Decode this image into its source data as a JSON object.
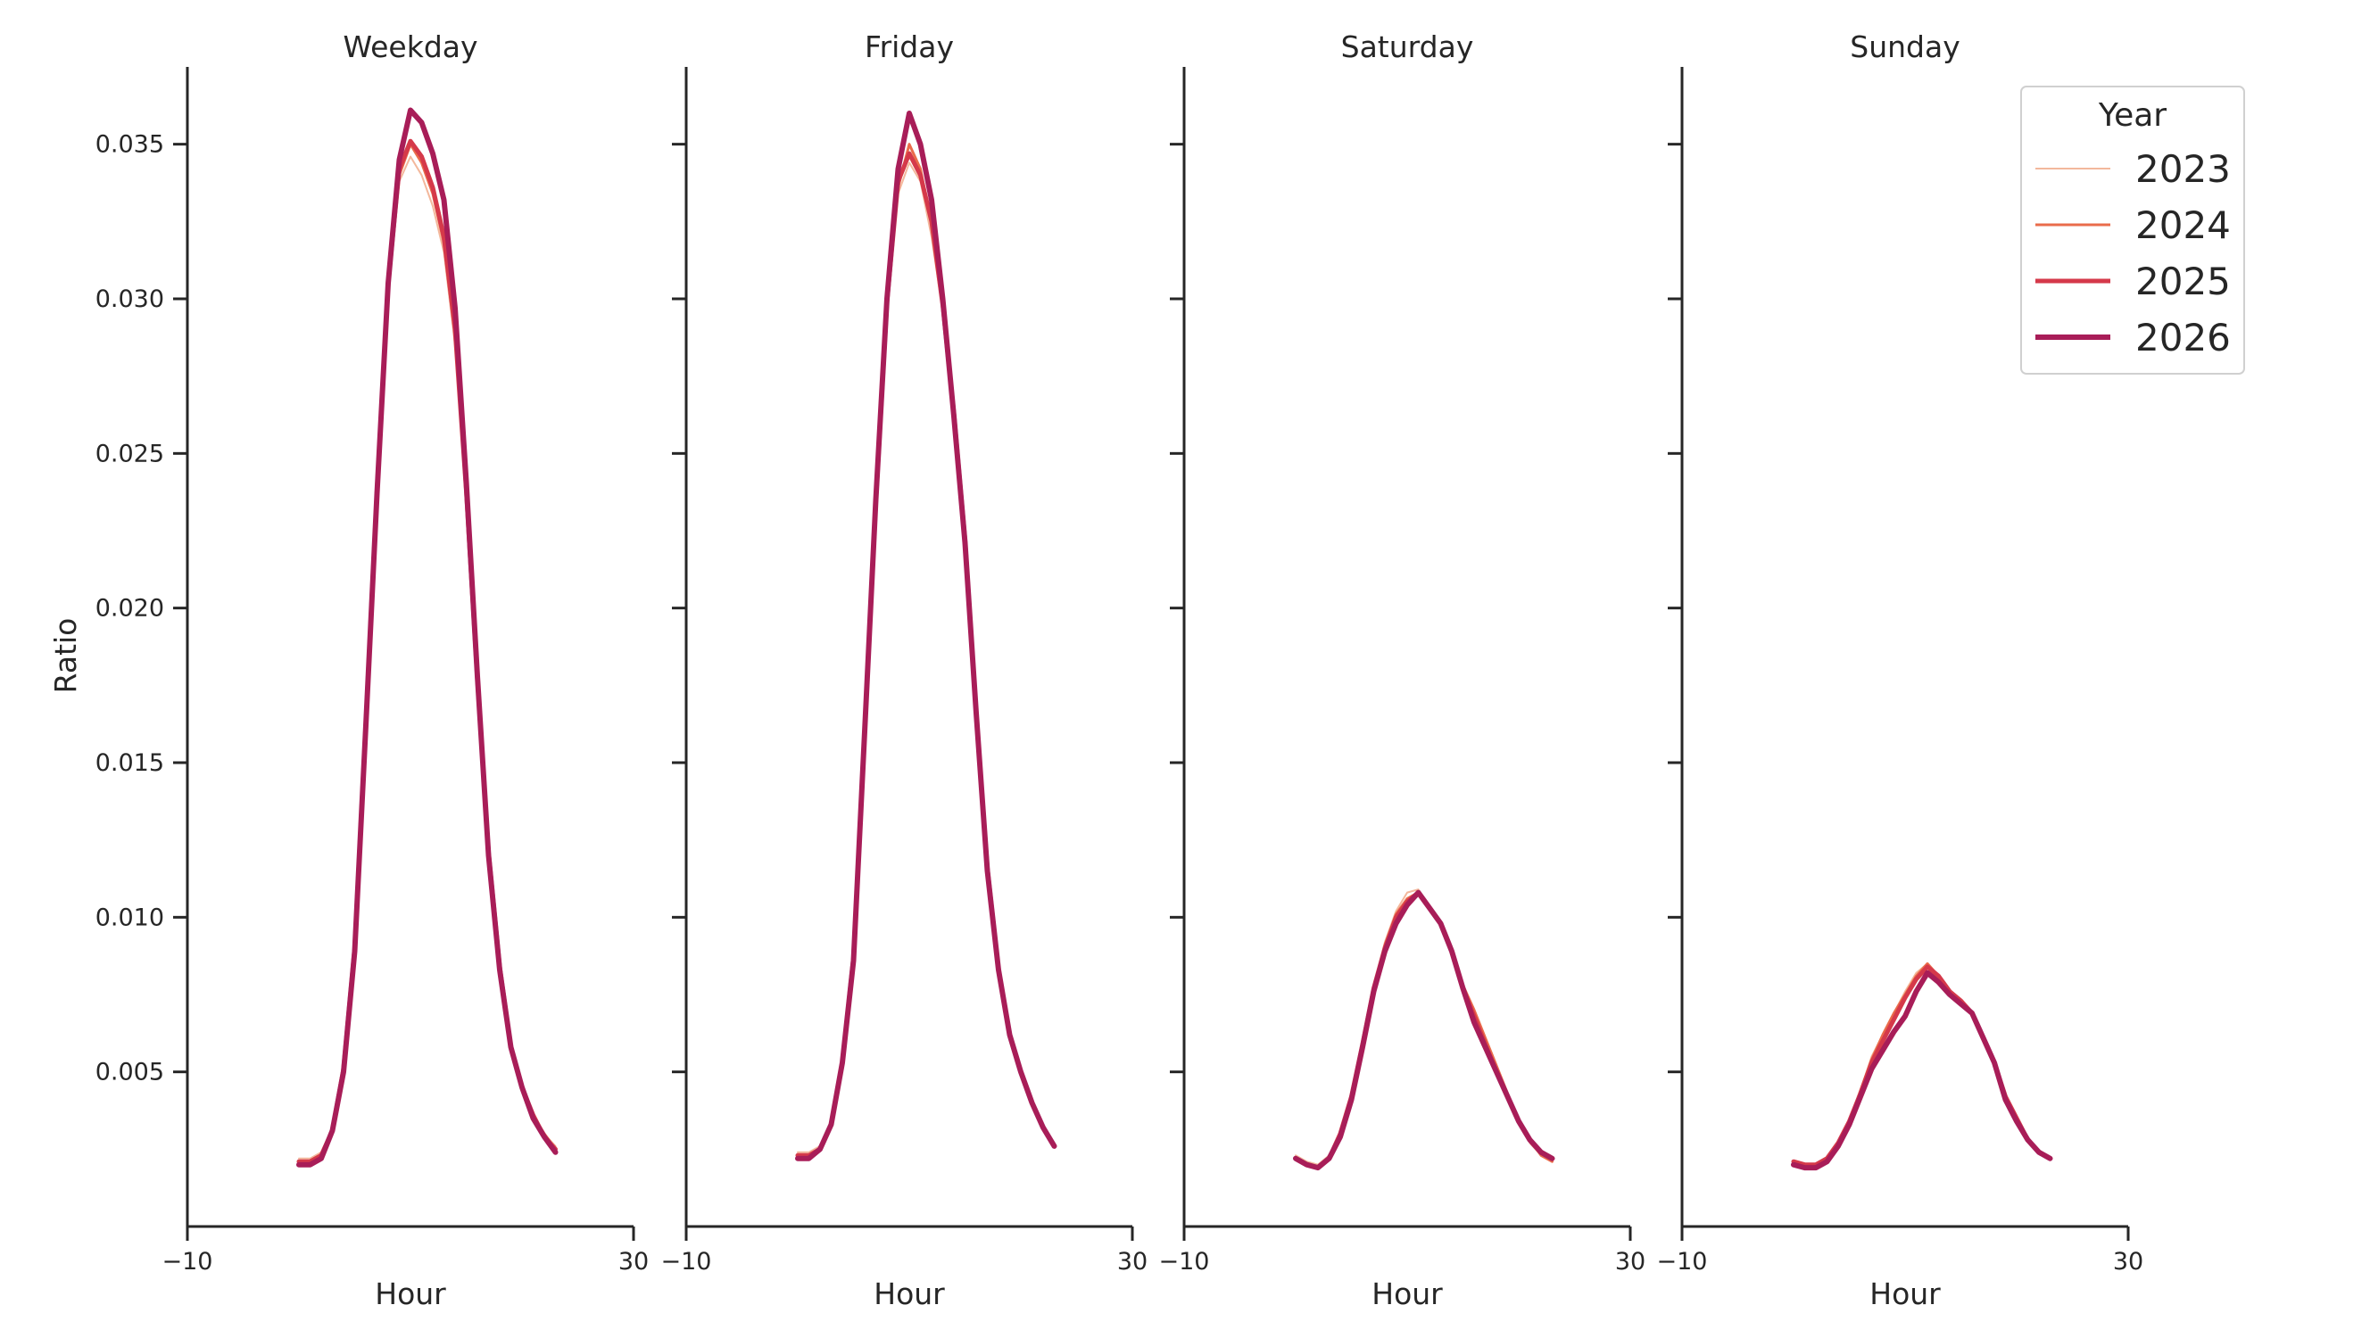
{
  "chart_data": {
    "type": "line",
    "ylabel": "Ratio",
    "ylim": [
      0,
      0.0375
    ],
    "yticks": [
      0.005,
      0.01,
      0.015,
      0.02,
      0.025,
      0.03,
      0.035
    ],
    "ytick_labels": [
      "0.005",
      "0.010",
      "0.015",
      "0.020",
      "0.025",
      "0.030",
      "0.035"
    ],
    "xlim": [
      -10,
      30
    ],
    "xticks": [
      -10,
      30
    ],
    "xtick_labels": [
      "−10",
      "30"
    ],
    "legend": {
      "title": "Year",
      "placement": "top-right"
    },
    "x": [
      0,
      1,
      2,
      3,
      4,
      5,
      6,
      7,
      8,
      9,
      10,
      11,
      12,
      13,
      14,
      15,
      16,
      17,
      18,
      19,
      20,
      21,
      22,
      23
    ],
    "panels": [
      {
        "title": "Weekday",
        "xlabel": "Hour",
        "series": [
          {
            "name": "2023",
            "color": "#f3b89c",
            "width": 2,
            "values": [
              0.0022,
              0.0022,
              0.0024,
              0.0032,
              0.0052,
              0.0092,
              0.0165,
              0.024,
              0.0305,
              0.0338,
              0.0346,
              0.034,
              0.033,
              0.0315,
              0.0285,
              0.0235,
              0.0175,
              0.012,
              0.0083,
              0.0058,
              0.0045,
              0.0036,
              0.003,
              0.0026
            ]
          },
          {
            "name": "2024",
            "color": "#ea6c4b",
            "width": 3,
            "values": [
              0.0021,
              0.0021,
              0.0023,
              0.0031,
              0.0051,
              0.009,
              0.0163,
              0.0238,
              0.0304,
              0.034,
              0.035,
              0.0344,
              0.0334,
              0.0318,
              0.0288,
              0.0237,
              0.0176,
              0.0121,
              0.0084,
              0.0058,
              0.0045,
              0.0036,
              0.003,
              0.0025
            ]
          },
          {
            "name": "2025",
            "color": "#d5394a",
            "width": 5,
            "values": [
              0.0021,
              0.0021,
              0.0023,
              0.0031,
              0.0051,
              0.009,
              0.0163,
              0.0238,
              0.0305,
              0.0342,
              0.0351,
              0.0346,
              0.0336,
              0.032,
              0.029,
              0.0238,
              0.0177,
              0.0121,
              0.0084,
              0.0058,
              0.0045,
              0.0036,
              0.0029,
              0.0025
            ]
          },
          {
            "name": "2026",
            "color": "#a81d58",
            "width": 6,
            "values": [
              0.002,
              0.002,
              0.0022,
              0.0031,
              0.005,
              0.0089,
              0.0162,
              0.0237,
              0.0305,
              0.0345,
              0.0361,
              0.0357,
              0.0347,
              0.0332,
              0.0297,
              0.0241,
              0.0178,
              0.012,
              0.0083,
              0.0058,
              0.0045,
              0.0035,
              0.0029,
              0.0024
            ]
          }
        ]
      },
      {
        "title": "Friday",
        "xlabel": "Hour",
        "series": [
          {
            "name": "2023",
            "color": "#f3b89c",
            "width": 2,
            "values": [
              0.0024,
              0.0024,
              0.0026,
              0.0034,
              0.0054,
              0.0088,
              0.016,
              0.0232,
              0.0298,
              0.0334,
              0.0344,
              0.0338,
              0.032,
              0.0296,
              0.0262,
              0.0222,
              0.0166,
              0.0116,
              0.0083,
              0.0062,
              0.005,
              0.004,
              0.0032,
              0.0027
            ]
          },
          {
            "name": "2024",
            "color": "#ea6c4b",
            "width": 3,
            "values": [
              0.0023,
              0.0023,
              0.0025,
              0.0033,
              0.0053,
              0.0087,
              0.016,
              0.0233,
              0.0298,
              0.0336,
              0.035,
              0.0342,
              0.0324,
              0.0298,
              0.0263,
              0.0222,
              0.0166,
              0.0116,
              0.0083,
              0.0062,
              0.005,
              0.004,
              0.0032,
              0.0026
            ]
          },
          {
            "name": "2025",
            "color": "#d5394a",
            "width": 5,
            "values": [
              0.0023,
              0.0023,
              0.0025,
              0.0033,
              0.0053,
              0.0087,
              0.016,
              0.0234,
              0.0299,
              0.0338,
              0.0347,
              0.034,
              0.0325,
              0.0298,
              0.0263,
              0.0222,
              0.0166,
              0.0116,
              0.0083,
              0.0062,
              0.005,
              0.004,
              0.0032,
              0.0026
            ]
          },
          {
            "name": "2026",
            "color": "#a81d58",
            "width": 6,
            "values": [
              0.0022,
              0.0022,
              0.0025,
              0.0033,
              0.0053,
              0.0086,
              0.016,
              0.0235,
              0.03,
              0.0342,
              0.036,
              0.035,
              0.0332,
              0.03,
              0.0262,
              0.0221,
              0.0166,
              0.0115,
              0.0083,
              0.0062,
              0.005,
              0.004,
              0.0032,
              0.0026
            ]
          }
        ]
      },
      {
        "title": "Saturday",
        "xlabel": "Hour",
        "series": [
          {
            "name": "2023",
            "color": "#f3b89c",
            "width": 2,
            "values": [
              0.0023,
              0.0021,
              0.002,
              0.0023,
              0.003,
              0.0043,
              0.006,
              0.0078,
              0.0092,
              0.0102,
              0.0108,
              0.0109,
              0.0103,
              0.0098,
              0.0089,
              0.0078,
              0.0069,
              0.006,
              0.0051,
              0.0042,
              0.0034,
              0.0027,
              0.0023,
              0.0021
            ]
          },
          {
            "name": "2024",
            "color": "#ea6c4b",
            "width": 3,
            "values": [
              0.0022,
              0.002,
              0.0019,
              0.0022,
              0.003,
              0.0042,
              0.0059,
              0.0077,
              0.0091,
              0.0101,
              0.0106,
              0.0108,
              0.0103,
              0.0098,
              0.0089,
              0.0078,
              0.007,
              0.0061,
              0.0052,
              0.0043,
              0.0034,
              0.0028,
              0.0023,
              0.0021
            ]
          },
          {
            "name": "2025",
            "color": "#d5394a",
            "width": 5,
            "values": [
              0.0022,
              0.002,
              0.0019,
              0.0022,
              0.003,
              0.0042,
              0.0059,
              0.0077,
              0.009,
              0.01,
              0.0105,
              0.0108,
              0.0103,
              0.0098,
              0.0089,
              0.0077,
              0.0068,
              0.0059,
              0.005,
              0.0042,
              0.0034,
              0.0028,
              0.0024,
              0.0022
            ]
          },
          {
            "name": "2026",
            "color": "#a81d58",
            "width": 6,
            "values": [
              0.0022,
              0.002,
              0.0019,
              0.0022,
              0.0029,
              0.0041,
              0.0058,
              0.0076,
              0.0089,
              0.0098,
              0.0104,
              0.0108,
              0.0103,
              0.0098,
              0.0089,
              0.0077,
              0.0066,
              0.0058,
              0.005,
              0.0042,
              0.0034,
              0.0028,
              0.0024,
              0.0022
            ]
          }
        ]
      },
      {
        "title": "Sunday",
        "xlabel": "Hour",
        "series": [
          {
            "name": "2023",
            "color": "#f3b89c",
            "width": 2,
            "values": [
              0.0021,
              0.002,
              0.002,
              0.0022,
              0.0027,
              0.0034,
              0.0044,
              0.0055,
              0.0062,
              0.0069,
              0.0076,
              0.0082,
              0.0085,
              0.0081,
              0.0076,
              0.0073,
              0.0069,
              0.0061,
              0.0053,
              0.0042,
              0.0035,
              0.0028,
              0.0024,
              0.0022
            ]
          },
          {
            "name": "2024",
            "color": "#ea6c4b",
            "width": 3,
            "values": [
              0.0021,
              0.002,
              0.002,
              0.0022,
              0.0027,
              0.0034,
              0.0044,
              0.0054,
              0.0062,
              0.0069,
              0.0075,
              0.0081,
              0.0085,
              0.0081,
              0.0076,
              0.0073,
              0.0069,
              0.0061,
              0.0053,
              0.0042,
              0.0035,
              0.0028,
              0.0024,
              0.0022
            ]
          },
          {
            "name": "2025",
            "color": "#d5394a",
            "width": 5,
            "values": [
              0.0021,
              0.002,
              0.002,
              0.0022,
              0.0027,
              0.0034,
              0.0043,
              0.0053,
              0.006,
              0.0067,
              0.0074,
              0.008,
              0.0084,
              0.0081,
              0.0076,
              0.0073,
              0.0069,
              0.0061,
              0.0053,
              0.0042,
              0.0035,
              0.0028,
              0.0024,
              0.0022
            ]
          },
          {
            "name": "2026",
            "color": "#a81d58",
            "width": 6,
            "values": [
              0.002,
              0.0019,
              0.0019,
              0.0021,
              0.0026,
              0.0033,
              0.0042,
              0.0051,
              0.0057,
              0.0063,
              0.0068,
              0.0076,
              0.0082,
              0.0079,
              0.0075,
              0.0072,
              0.0069,
              0.0061,
              0.0053,
              0.0041,
              0.0034,
              0.0028,
              0.0024,
              0.0022
            ]
          }
        ]
      }
    ]
  }
}
